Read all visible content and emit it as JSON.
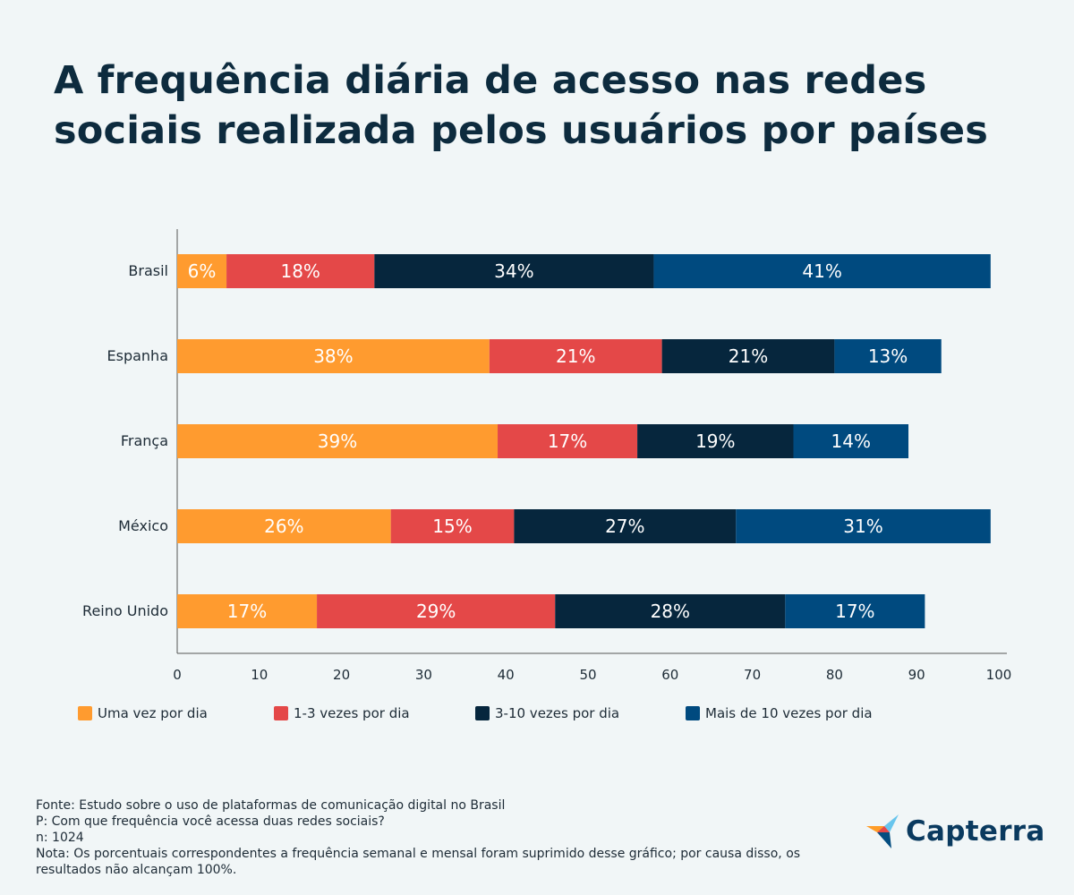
{
  "title_lines": [
    "A frequência diária de acesso nas redes",
    "sociais realizada pelos usuários por países"
  ],
  "chart_data": {
    "type": "bar",
    "orientation": "horizontal",
    "stacked": true,
    "title": "A frequência diária de acesso nas redes sociais realizada pelos usuários por países",
    "categories": [
      "Brasil",
      "Espanha",
      "França",
      "México",
      "Reino Unido"
    ],
    "series": [
      {
        "name": "Uma vez por dia",
        "color": "#ff9b2f",
        "values": [
          6,
          38,
          39,
          26,
          17
        ]
      },
      {
        "name": "1-3 vezes por dia",
        "color": "#e44848",
        "values": [
          18,
          21,
          17,
          15,
          29
        ]
      },
      {
        "name": "3-10 vezes por dia",
        "color": "#06263d",
        "values": [
          34,
          21,
          19,
          27,
          28
        ]
      },
      {
        "name": "Mais de 10 vezes por dia",
        "color": "#004a7f",
        "values": [
          41,
          13,
          14,
          31,
          17
        ]
      }
    ],
    "xlim": [
      0,
      100
    ],
    "xticks": [
      0,
      10,
      20,
      30,
      40,
      50,
      60,
      70,
      80,
      90,
      100
    ],
    "value_suffix": "%",
    "grid": false,
    "legend_position": "bottom"
  },
  "footer": {
    "source": "Fonte: Estudo sobre o uso de plataformas de comunicação digital no Brasil",
    "question": "P: Com que frequência você acessa duas redes sociais?",
    "sample": "n: 1024",
    "note": "Nota: Os porcentuais correspondentes a frequência semanal e mensal foram suprimido desse gráfico; por causa disso, os resultados não alcançam 100%."
  },
  "logo": {
    "text": "Capterra",
    "icon": "capterra-arrow-icon"
  }
}
